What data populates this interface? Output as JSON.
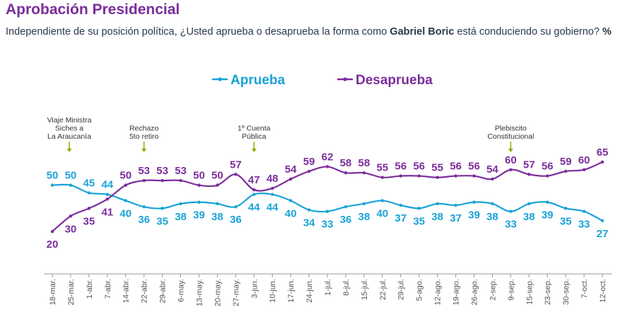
{
  "header": {
    "title": "Aprobación Presidencial",
    "subtitle_pre": "Independiente de su posición política, ¿Usted aprueba o desaprueba la forma como ",
    "subtitle_name": "Gabriel Boric",
    "subtitle_post": " está conduciendo su gobierno? ",
    "subtitle_unit": "%"
  },
  "colors": {
    "aprueba": "#1aa3d6",
    "desaprueba": "#7b2d9b",
    "annotation_arrow": "#9aa800",
    "title": "#7b2d9b"
  },
  "chart_data": {
    "type": "line",
    "categories": [
      "18-mar.",
      "25-mar.",
      "1-abr.",
      "7-abr.",
      "14-abr.",
      "22-abr.",
      "29-abr.",
      "6-may.",
      "13-may.",
      "20-may.",
      "27-may.",
      "3-jun.",
      "10-jun.",
      "17-jun.",
      "24-jun.",
      "1-jul.",
      "8-jul.",
      "15-jul.",
      "22-jul.",
      "29-jul.",
      "5-ago.",
      "12-ago.",
      "19-ago.",
      "26-ago.",
      "2-sep.",
      "9-sep.",
      "15-sep.",
      "23-sep.",
      "30-sep.",
      "7-oct.",
      "12-oct."
    ],
    "series": [
      {
        "name": "Aprueba",
        "values": [
          50,
          50,
          45,
          44,
          40,
          36,
          35,
          38,
          39,
          38,
          36,
          44,
          44,
          40,
          34,
          33,
          36,
          38,
          40,
          37,
          35,
          38,
          37,
          39,
          38,
          33,
          38,
          39,
          35,
          33,
          27
        ]
      },
      {
        "name": "Desaprueba",
        "values": [
          20,
          30,
          35,
          41,
          50,
          53,
          53,
          53,
          50,
          50,
          57,
          47,
          48,
          54,
          59,
          62,
          58,
          58,
          55,
          56,
          56,
          55,
          56,
          56,
          54,
          60,
          57,
          56,
          59,
          60,
          65
        ]
      }
    ],
    "ylim": [
      15,
      70
    ],
    "legend": "top-center",
    "grid": false,
    "annotations": [
      {
        "index": 1,
        "lines": [
          "Viaje Ministra",
          "Siches a",
          "La Araucanía"
        ]
      },
      {
        "index": 5,
        "lines": [
          "Rechazo",
          "5to retiro"
        ]
      },
      {
        "index": 11,
        "lines": [
          "1º Cuenta",
          "Pública"
        ]
      },
      {
        "index": 25,
        "lines": [
          "Plebiscito",
          "Constitucional"
        ]
      }
    ]
  }
}
